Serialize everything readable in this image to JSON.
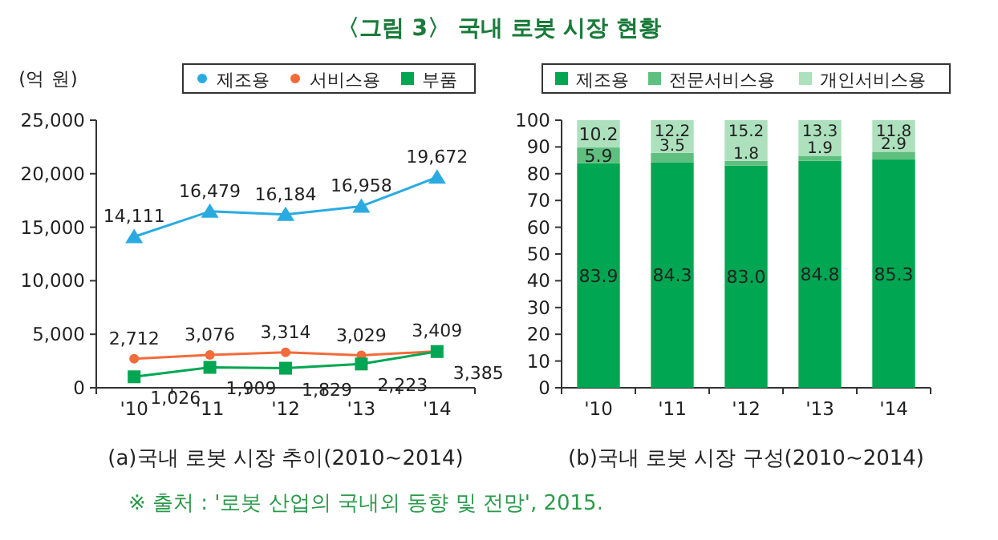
{
  "chart_data": [
    {
      "type": "line",
      "title": "〈그림 3〉 국내 로봇 시장 현황",
      "ylabel": "(억 원)",
      "xlabel": "(a)국내 로봇 시장 추이(2010~2014)",
      "categories": [
        "'10",
        "'11",
        "'12",
        "'13",
        "'14"
      ],
      "series": [
        {
          "name": "제조용",
          "color": "#29abe2",
          "marker": "triangle",
          "values": [
            14111,
            16479,
            16184,
            16958,
            19672
          ],
          "value_labels": [
            "14,111",
            "16,479",
            "16,184",
            "16,958",
            "19,672"
          ]
        },
        {
          "name": "서비스용",
          "color": "#f26b3a",
          "marker": "circle",
          "values": [
            2712,
            3076,
            3314,
            3029,
            3409
          ],
          "value_labels": [
            "2,712",
            "3,076",
            "3,314",
            "3,029",
            "3,409"
          ]
        },
        {
          "name": "부품",
          "color": "#00a651",
          "marker": "square",
          "values": [
            1026,
            1909,
            1829,
            2223,
            3385
          ],
          "value_labels": [
            "1,026",
            "1,909",
            "1,829",
            "2,223",
            "3,385"
          ]
        }
      ],
      "ylim": [
        0,
        25000
      ],
      "yticks": [
        {
          "value": 0,
          "label": "0"
        },
        {
          "value": 5000,
          "label": "5,000"
        },
        {
          "value": 10000,
          "label": "10,000"
        },
        {
          "value": 15000,
          "label": "15,000"
        },
        {
          "value": 20000,
          "label": "20,000"
        },
        {
          "value": 25000,
          "label": "25,000"
        }
      ],
      "legend": "top right",
      "grid": false
    },
    {
      "type": "bar",
      "stacked": true,
      "xlabel": "(b)국내 로봇 시장 구성(2010~2014)",
      "categories": [
        "'10",
        "'11",
        "'12",
        "'13",
        "'14"
      ],
      "series": [
        {
          "name": "제조용",
          "color": "#00a651",
          "values": [
            83.9,
            84.3,
            83.0,
            84.8,
            85.3
          ],
          "value_labels": [
            "83.9",
            "84.3",
            "83.0",
            "84.8",
            "85.3"
          ]
        },
        {
          "name": "전문서비스용",
          "color": "#5fbf7f",
          "values": [
            5.9,
            3.5,
            1.8,
            1.9,
            2.9
          ]
        },
        {
          "name": "개인서비스용",
          "color": "#ade0bd",
          "values": [
            10.2,
            12.2,
            15.2,
            13.3,
            11.8
          ]
        }
      ],
      "ylim": [
        0,
        100
      ],
      "yticks": [
        0,
        10,
        20,
        30,
        40,
        50,
        60,
        70,
        80,
        90,
        100
      ],
      "data_labels": true,
      "legend": "top",
      "grid": false,
      "annotations": [
        "※ 출처 : '로봇 산업의 국내외 동향 및 전망', 2015."
      ]
    }
  ]
}
